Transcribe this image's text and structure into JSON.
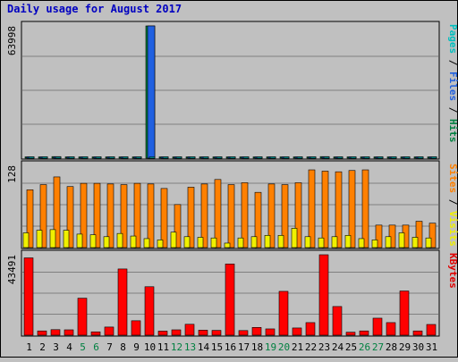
{
  "chart_data": {
    "type": "bar",
    "title": "Daily usage for August 2017",
    "categories": [
      "1",
      "2",
      "3",
      "4",
      "5",
      "6",
      "7",
      "8",
      "9",
      "10",
      "11",
      "12",
      "13",
      "14",
      "15",
      "16",
      "17",
      "18",
      "19",
      "20",
      "21",
      "22",
      "23",
      "24",
      "25",
      "26",
      "27",
      "28",
      "29",
      "30",
      "31"
    ],
    "weekend_days": [
      "5",
      "6",
      "12",
      "13",
      "19",
      "20",
      "26",
      "27"
    ],
    "panels": [
      {
        "id": "hits-files-pages",
        "y_max_label": "63998",
        "ylim": [
          0,
          63998
        ],
        "right_label_parts": [
          {
            "text": "Pages",
            "color": "#00c0c0"
          },
          {
            "text": " / ",
            "color": "#000000"
          },
          {
            "text": "Files",
            "color": "#2060e0"
          },
          {
            "text": " / ",
            "color": "#000000"
          },
          {
            "text": "Hits",
            "color": "#008040"
          }
        ],
        "series": [
          {
            "name": "Hits",
            "color": "#008040",
            "values": [
              520,
              520,
              780,
              520,
              520,
              520,
              520,
              520,
              650,
              63998,
              520,
              520,
              520,
              520,
              520,
              520,
              520,
              520,
              520,
              520,
              520,
              520,
              780,
              520,
              520,
              520,
              520,
              520,
              520,
              520,
              520
            ]
          },
          {
            "name": "Files",
            "color": "#2060e0",
            "values": [
              420,
              420,
              650,
              420,
              420,
              420,
              420,
              420,
              520,
              63998,
              420,
              420,
              420,
              420,
              420,
              420,
              420,
              420,
              420,
              420,
              420,
              420,
              650,
              420,
              420,
              420,
              420,
              420,
              420,
              420,
              420
            ]
          },
          {
            "name": "Pages",
            "color": "#00c0c0",
            "values": [
              300,
              300,
              500,
              300,
              300,
              300,
              300,
              300,
              400,
              400,
              300,
              300,
              300,
              300,
              300,
              300,
              300,
              300,
              300,
              300,
              300,
              300,
              500,
              300,
              300,
              300,
              300,
              300,
              300,
              300,
              300
            ]
          }
        ]
      },
      {
        "id": "visits-sites",
        "y_max_label": "128",
        "ylim": [
          0,
          128
        ],
        "right_label_parts": [
          {
            "text": "Sites",
            "color": "#ff8000"
          },
          {
            "text": " / ",
            "color": "#000000"
          },
          {
            "text": "Visits",
            "color": "#f0f000"
          }
        ],
        "series": [
          {
            "name": "Visits",
            "color": "#ff8000",
            "values": [
              90,
              98,
              110,
              95,
              100,
              100,
              99,
              98,
              100,
              99,
              92,
              67,
              94,
              99,
              106,
              98,
              101,
              86,
              99,
              98,
              101,
              121,
              119,
              118,
              120,
              121,
              35,
              35,
              35,
              41,
              38
            ]
          },
          {
            "name": "Sites",
            "color": "#f0f000",
            "values": [
              23,
              27,
              28,
              27,
              21,
              20,
              17,
              22,
              18,
              14,
              12,
              24,
              17,
              16,
              15,
              7,
              15,
              17,
              19,
              19,
              30,
              17,
              15,
              17,
              19,
              14,
              12,
              17,
              23,
              16,
              15
            ]
          }
        ]
      },
      {
        "id": "kbytes",
        "y_max_label": "43491",
        "ylim": [
          0,
          43491
        ],
        "right_label_parts": [
          {
            "text": "KBytes",
            "color": "#e00000"
          }
        ],
        "series": [
          {
            "name": "KBytes",
            "color": "#ff0000",
            "values": [
              41800,
              2300,
              3000,
              2900,
              20000,
              1800,
              4400,
              35800,
              7800,
              26200,
              2200,
              2900,
              5900,
              2700,
              2600,
              38500,
              2500,
              4200,
              3400,
              23700,
              3900,
              6800,
              43491,
              15500,
              1600,
              2300,
              9200,
              6800,
              23900,
              2300,
              5800
            ]
          }
        ]
      }
    ],
    "grid": true
  }
}
